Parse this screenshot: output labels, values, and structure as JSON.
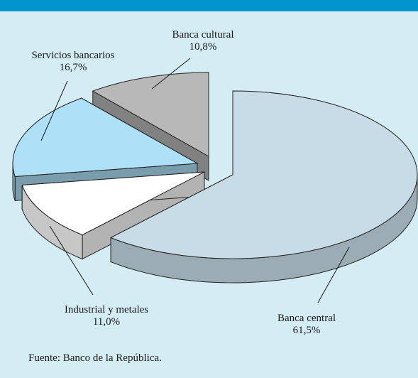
{
  "chart_data": {
    "type": "pie",
    "style": "3d-exploded",
    "slices": [
      {
        "label": "Banca central",
        "value": 61.5,
        "value_label": "61,5%",
        "color": "#c8dce8"
      },
      {
        "label": "Industrial y metales",
        "value": 11.0,
        "value_label": "11,0%",
        "color": "#ffffff"
      },
      {
        "label": "Servicios bancarios",
        "value": 16.7,
        "value_label": "16,7%",
        "color": "#aee0f8"
      },
      {
        "label": "Banca cultural",
        "value": 10.8,
        "value_label": "10,8%",
        "color": "#b8b8b8"
      }
    ]
  },
  "colors": {
    "background": "#d4ecf4",
    "top_bar": "#0096cc"
  },
  "source": "Fuente: Banco de la República."
}
